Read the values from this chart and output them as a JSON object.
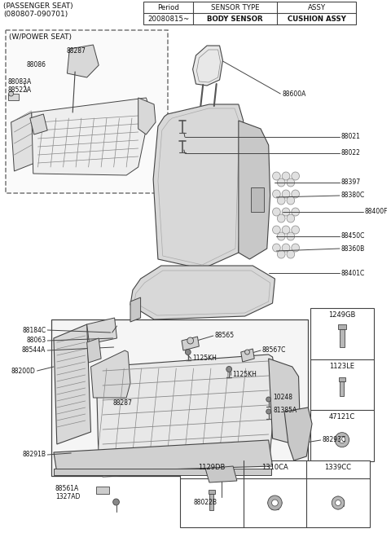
{
  "title_line1": "(PASSENGER SEAT)",
  "title_line2": "(080807-090701)",
  "bg_color": "#ffffff",
  "table_header": [
    "Period",
    "SENSOR TYPE",
    "ASSY"
  ],
  "table_row": [
    "20080815~",
    "BODY SENSOR",
    "CUSHION ASSY"
  ],
  "inset_label": "(W/POWER SEAT)",
  "line_color": "#444444",
  "text_color": "#111111"
}
